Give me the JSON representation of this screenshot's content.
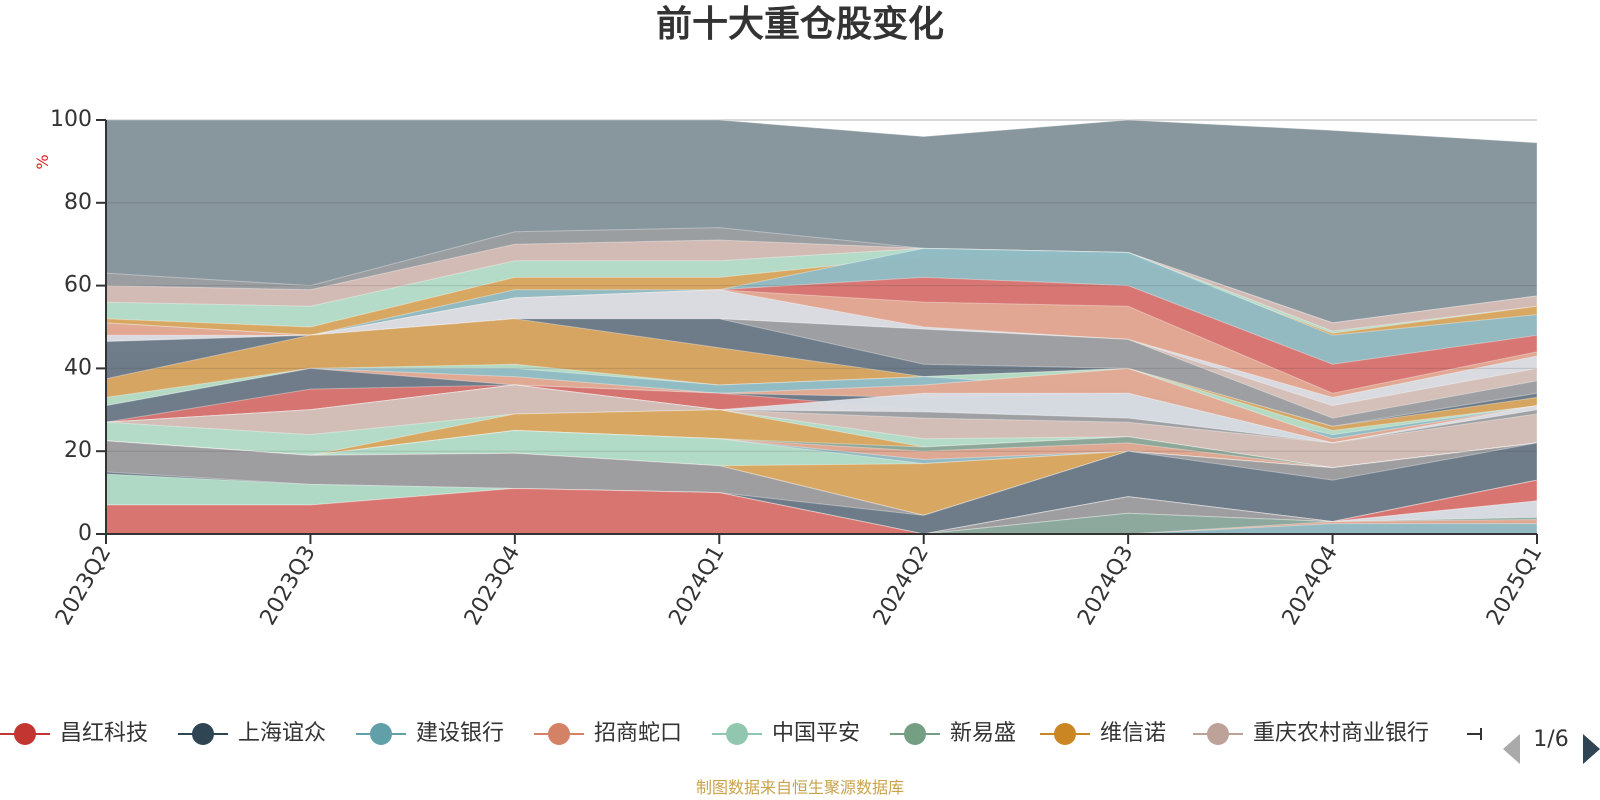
{
  "chart_data": {
    "type": "area",
    "title": "前十大重仓股变化",
    "ylabel": "%",
    "ylim": [
      0,
      100
    ],
    "yticks": [
      0,
      20,
      40,
      60,
      80,
      100
    ],
    "grid": true,
    "stacked": false,
    "categories": [
      "2023Q2",
      "2023Q3",
      "2023Q4",
      "2024Q1",
      "2024Q2",
      "2024Q3",
      "2024Q4",
      "2025Q1"
    ],
    "layers": [
      {
        "color": "#84939b",
        "top": [
          100,
          100,
          100,
          100,
          96,
          100,
          97.5,
          94.5
        ]
      },
      {
        "color": "#9c9ea1",
        "top": [
          63,
          60,
          73,
          74,
          69,
          68,
          51,
          57.5
        ]
      },
      {
        "color": "#d5bcb6",
        "top": [
          60,
          59,
          70,
          71,
          69,
          68,
          51,
          57.5
        ]
      },
      {
        "color": "#b3dcc7",
        "top": [
          56,
          55,
          66,
          66,
          69,
          68,
          49,
          55
        ]
      },
      {
        "color": "#d9a660",
        "top": [
          52,
          50,
          62,
          62,
          67,
          67,
          48.5,
          55
        ]
      },
      {
        "color": "#91bbc4",
        "top": [
          51,
          48,
          59,
          59,
          69,
          68,
          48,
          53
        ]
      },
      {
        "color": "#d97470",
        "top": [
          50,
          48,
          57,
          59,
          62,
          60,
          41,
          48
        ]
      },
      {
        "color": "#e2a893",
        "top": [
          51,
          48,
          57,
          59,
          56,
          55,
          34,
          44
        ]
      },
      {
        "color": "#d9dde3",
        "top": [
          48,
          48,
          57,
          59,
          50,
          47,
          33,
          43
        ]
      },
      {
        "color": "#d4bfb8",
        "top": [
          46.5,
          48,
          52,
          52,
          49.5,
          47,
          31,
          40
        ]
      },
      {
        "color": "#9c9ea1",
        "top": [
          44,
          44,
          52,
          52,
          49.5,
          47,
          28,
          37
        ]
      },
      {
        "color": "#6c7b88",
        "top": [
          46.5,
          48,
          52,
          52,
          41,
          40,
          26,
          34
        ]
      },
      {
        "color": "#d9a660",
        "top": [
          37.5,
          48,
          52,
          45,
          38,
          40,
          26,
          33
        ]
      },
      {
        "color": "#b3dcc7",
        "top": [
          33,
          40,
          41,
          36,
          38,
          40,
          25,
          31
        ]
      },
      {
        "color": "#91bbc4",
        "top": [
          31,
          40,
          40,
          36,
          38,
          35,
          24,
          31
        ]
      },
      {
        "color": "#e2a893",
        "top": [
          29,
          40,
          38,
          34,
          36,
          40,
          23,
          31
        ]
      },
      {
        "color": "#6c7b88",
        "top": [
          31,
          40,
          36,
          34,
          33,
          34,
          22,
          30
        ]
      },
      {
        "color": "#d97470",
        "top": [
          27,
          35,
          36,
          34,
          30,
          28,
          22,
          30
        ]
      },
      {
        "color": "#9c9ea1",
        "top": [
          27,
          30,
          36,
          30,
          30,
          28,
          22,
          30
        ]
      },
      {
        "color": "#d9dde3",
        "top": [
          27,
          30,
          36,
          30,
          34,
          34,
          22,
          31
        ]
      },
      {
        "color": "#9c9ea1",
        "top": [
          27,
          30,
          36,
          30,
          29.5,
          28,
          22,
          30
        ]
      },
      {
        "color": "#d4bfb8",
        "top": [
          27,
          30,
          36,
          30,
          28,
          27,
          22,
          29
        ]
      },
      {
        "color": "#b3dcc7",
        "top": [
          27,
          24,
          29,
          30,
          23,
          23.5,
          16,
          22
        ]
      },
      {
        "color": "#d9a660",
        "top": [
          22.5,
          19,
          29,
          30,
          21,
          23.5,
          16,
          22
        ]
      },
      {
        "color": "#8aa79b",
        "top": [
          22.5,
          19,
          25,
          23,
          21,
          23.5,
          16,
          22
        ]
      },
      {
        "color": "#e2a893",
        "top": [
          22.5,
          19,
          25,
          23,
          20,
          22,
          16,
          22
        ]
      },
      {
        "color": "#91bbc4",
        "top": [
          22.5,
          19,
          25,
          23,
          18,
          20,
          16,
          22
        ]
      },
      {
        "color": "#b3dcc7",
        "top": [
          22.5,
          19,
          25,
          23,
          17,
          20,
          16,
          22
        ]
      },
      {
        "color": "#d9a660",
        "top": [
          22.5,
          19,
          19.5,
          16.5,
          17,
          20,
          16,
          22
        ]
      },
      {
        "color": "#e2a893",
        "top": [
          22.5,
          19,
          19.5,
          16.5,
          4.5,
          20,
          16,
          22
        ]
      },
      {
        "color": "#9c9ea1",
        "top": [
          22.5,
          19,
          19.5,
          16.5,
          4.5,
          20,
          16,
          22
        ]
      },
      {
        "color": "#6c7b88",
        "top": [
          15,
          12,
          11,
          10,
          4.5,
          20,
          13,
          22
        ]
      },
      {
        "color": "#b3dcc7",
        "top": [
          14.5,
          12,
          11,
          10,
          0,
          9,
          3,
          13
        ]
      },
      {
        "color": "#e2a893",
        "top": [
          7,
          7,
          11,
          10,
          0,
          9,
          3,
          13
        ]
      },
      {
        "color": "#d97470",
        "top": [
          7,
          7,
          11,
          10,
          0,
          9,
          3,
          13
        ]
      },
      {
        "color": "#9c9ea1",
        "top": [
          0,
          0,
          0,
          0,
          0,
          9,
          3,
          8
        ]
      },
      {
        "color": "#d9dde3",
        "top": [
          0,
          0,
          0,
          0,
          0,
          5,
          3,
          8
        ]
      },
      {
        "color": "#8aa79b",
        "top": [
          0,
          0,
          0,
          0,
          0,
          5,
          3,
          4
        ]
      },
      {
        "color": "#e2a893",
        "top": [
          0,
          0,
          0,
          0,
          0,
          0,
          3,
          3.5
        ]
      },
      {
        "color": "#91bbc4",
        "top": [
          0,
          0,
          0,
          0,
          0,
          0,
          2.5,
          2.5
        ]
      }
    ],
    "legend": {
      "position": "bottom",
      "items": [
        {
          "name": "昌红科技",
          "color": "#c23531"
        },
        {
          "name": "上海谊众",
          "color": "#2f4554"
        },
        {
          "name": "建设银行",
          "color": "#61a0a8"
        },
        {
          "name": "招商蛇口",
          "color": "#d48265"
        },
        {
          "name": "中国平安",
          "color": "#91c7ae"
        },
        {
          "name": "新易盛",
          "color": "#749f83"
        },
        {
          "name": "维信诺",
          "color": "#ca8622"
        },
        {
          "name": "重庆农村商业银行",
          "color": "#bda29a"
        }
      ],
      "page": "1/6"
    },
    "source": "制图数据来自恒生聚源数据库"
  }
}
